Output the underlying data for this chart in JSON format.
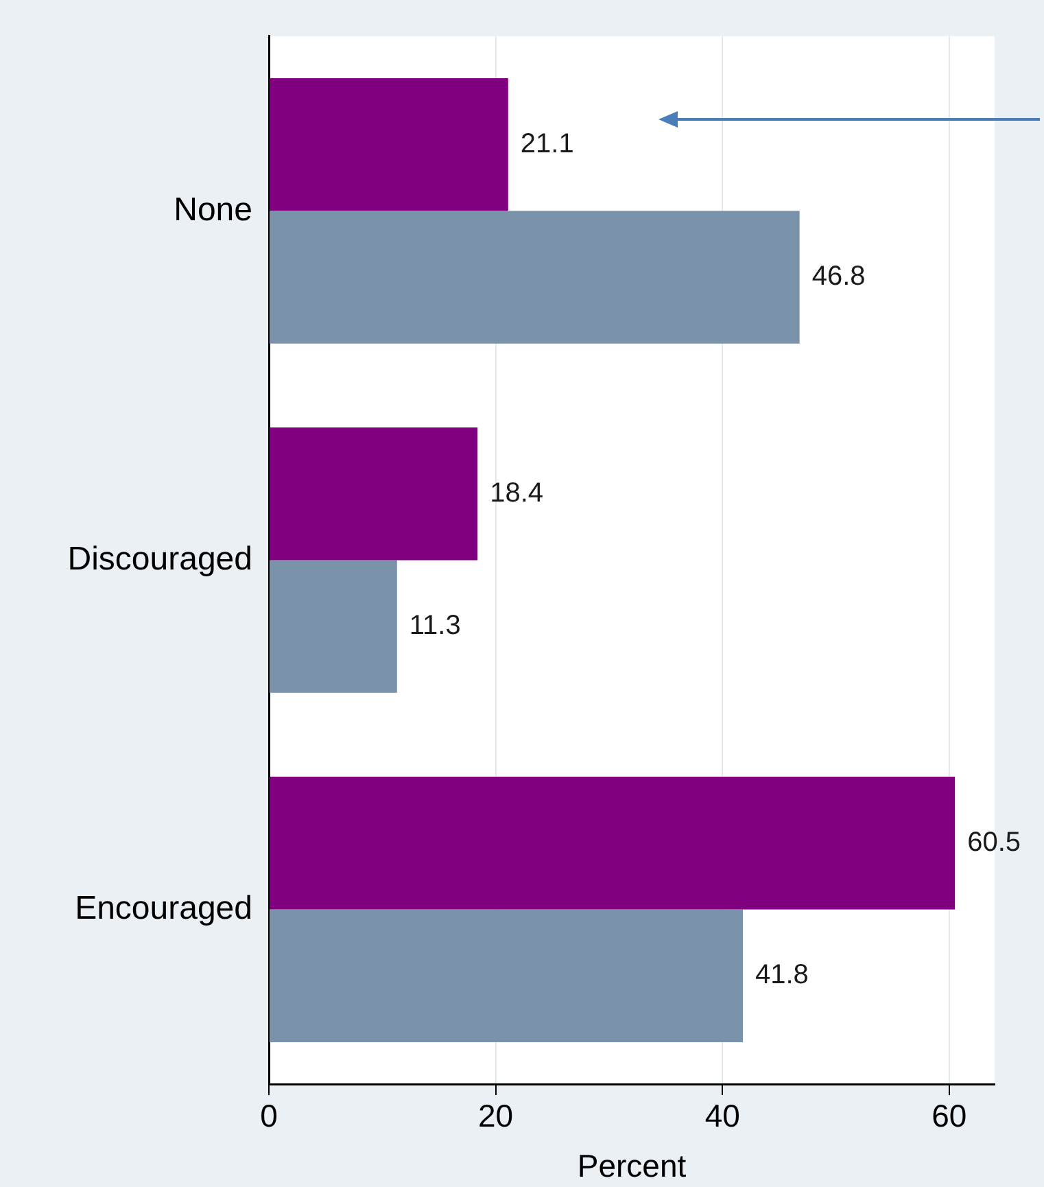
{
  "chart_data": {
    "type": "bar",
    "orientation": "horizontal",
    "xlabel": "Percent",
    "categories": [
      "None",
      "Discouraged",
      "Encouraged"
    ],
    "series": [
      {
        "color": "#800080",
        "values": [
          21.1,
          18.4,
          60.5
        ]
      },
      {
        "color": "#7b93aa",
        "values": [
          46.8,
          11.3,
          41.8
        ]
      }
    ],
    "xlim": [
      0,
      64
    ],
    "xticks": [
      0,
      20,
      40,
      60
    ],
    "grid": "x",
    "data_labels": true,
    "legend": false
  }
}
